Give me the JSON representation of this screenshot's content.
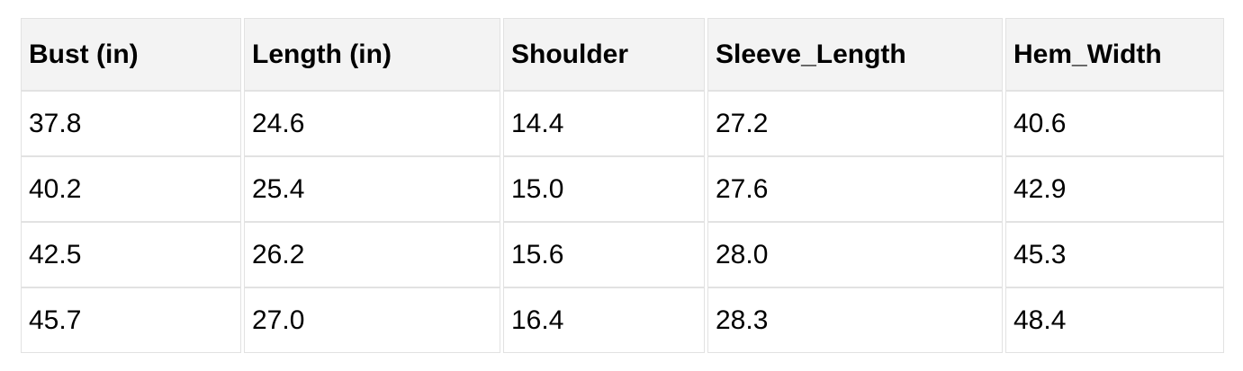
{
  "table": {
    "columns": [
      "Bust (in)",
      "Length (in)",
      "Shoulder",
      "Sleeve_Length",
      "Hem_Width"
    ],
    "rows": [
      [
        "37.8",
        "24.6",
        "14.4",
        "27.2",
        "40.6"
      ],
      [
        "40.2",
        "25.4",
        "15.0",
        "27.6",
        "42.9"
      ],
      [
        "42.5",
        "26.2",
        "15.6",
        "28.0",
        "45.3"
      ],
      [
        "45.7",
        "27.0",
        "16.4",
        "28.3",
        "48.4"
      ]
    ]
  },
  "chart_data": {
    "type": "table",
    "title": "",
    "columns": [
      "Bust (in)",
      "Length (in)",
      "Shoulder",
      "Sleeve_Length",
      "Hem_Width"
    ],
    "rows": [
      [
        37.8,
        24.6,
        14.4,
        27.2,
        40.6
      ],
      [
        40.2,
        25.4,
        15.0,
        27.6,
        42.9
      ],
      [
        42.5,
        26.2,
        15.6,
        28.0,
        45.3
      ],
      [
        45.7,
        27.0,
        16.4,
        28.3,
        48.4
      ]
    ]
  },
  "colors": {
    "header_bg": "#f3f3f3",
    "border": "#e2e2e2",
    "text": "#000000",
    "page_bg": "#ffffff"
  }
}
